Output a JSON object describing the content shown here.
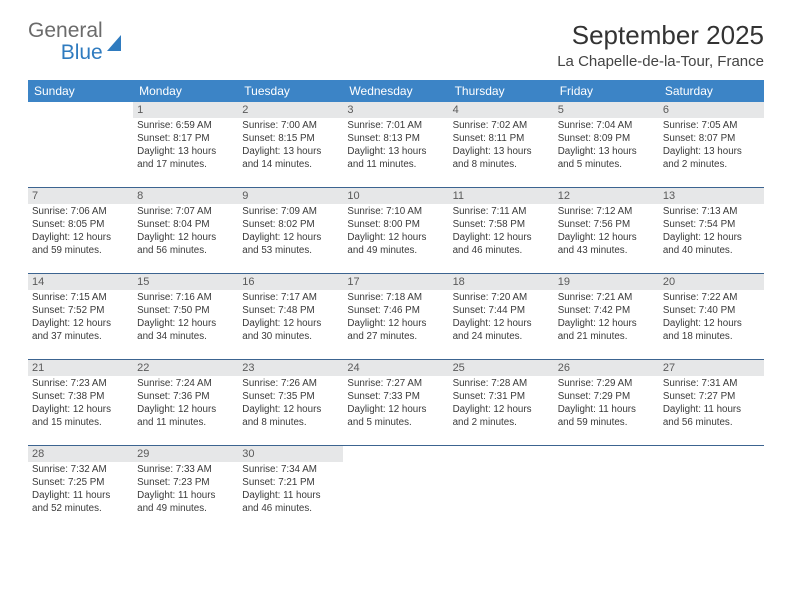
{
  "brand": {
    "name_line1": "General",
    "name_line2": "Blue"
  },
  "title": "September 2025",
  "location": "La Chapelle-de-la-Tour, France",
  "colors": {
    "header_bg": "#3c84c6",
    "header_fg": "#ffffff",
    "daynum_bg": "#e6e7e8",
    "daynum_fg": "#5a5a5a",
    "row_divider": "#3c6490",
    "brand_gray": "#6b6b6b",
    "brand_blue": "#2f7bbf",
    "body_text": "#3a3a3a",
    "page_bg": "#ffffff"
  },
  "typography": {
    "title_fontsize": 26,
    "location_fontsize": 15,
    "dayheader_fontsize": 12,
    "daynum_fontsize": 11,
    "body_fontsize": 9.8,
    "font_family": "Arial"
  },
  "day_headers": [
    "Sunday",
    "Monday",
    "Tuesday",
    "Wednesday",
    "Thursday",
    "Friday",
    "Saturday"
  ],
  "weeks": [
    [
      {
        "n": "",
        "sunrise": "",
        "sunset": "",
        "daylight": ""
      },
      {
        "n": "1",
        "sunrise": "Sunrise: 6:59 AM",
        "sunset": "Sunset: 8:17 PM",
        "daylight": "Daylight: 13 hours and 17 minutes."
      },
      {
        "n": "2",
        "sunrise": "Sunrise: 7:00 AM",
        "sunset": "Sunset: 8:15 PM",
        "daylight": "Daylight: 13 hours and 14 minutes."
      },
      {
        "n": "3",
        "sunrise": "Sunrise: 7:01 AM",
        "sunset": "Sunset: 8:13 PM",
        "daylight": "Daylight: 13 hours and 11 minutes."
      },
      {
        "n": "4",
        "sunrise": "Sunrise: 7:02 AM",
        "sunset": "Sunset: 8:11 PM",
        "daylight": "Daylight: 13 hours and 8 minutes."
      },
      {
        "n": "5",
        "sunrise": "Sunrise: 7:04 AM",
        "sunset": "Sunset: 8:09 PM",
        "daylight": "Daylight: 13 hours and 5 minutes."
      },
      {
        "n": "6",
        "sunrise": "Sunrise: 7:05 AM",
        "sunset": "Sunset: 8:07 PM",
        "daylight": "Daylight: 13 hours and 2 minutes."
      }
    ],
    [
      {
        "n": "7",
        "sunrise": "Sunrise: 7:06 AM",
        "sunset": "Sunset: 8:05 PM",
        "daylight": "Daylight: 12 hours and 59 minutes."
      },
      {
        "n": "8",
        "sunrise": "Sunrise: 7:07 AM",
        "sunset": "Sunset: 8:04 PM",
        "daylight": "Daylight: 12 hours and 56 minutes."
      },
      {
        "n": "9",
        "sunrise": "Sunrise: 7:09 AM",
        "sunset": "Sunset: 8:02 PM",
        "daylight": "Daylight: 12 hours and 53 minutes."
      },
      {
        "n": "10",
        "sunrise": "Sunrise: 7:10 AM",
        "sunset": "Sunset: 8:00 PM",
        "daylight": "Daylight: 12 hours and 49 minutes."
      },
      {
        "n": "11",
        "sunrise": "Sunrise: 7:11 AM",
        "sunset": "Sunset: 7:58 PM",
        "daylight": "Daylight: 12 hours and 46 minutes."
      },
      {
        "n": "12",
        "sunrise": "Sunrise: 7:12 AM",
        "sunset": "Sunset: 7:56 PM",
        "daylight": "Daylight: 12 hours and 43 minutes."
      },
      {
        "n": "13",
        "sunrise": "Sunrise: 7:13 AM",
        "sunset": "Sunset: 7:54 PM",
        "daylight": "Daylight: 12 hours and 40 minutes."
      }
    ],
    [
      {
        "n": "14",
        "sunrise": "Sunrise: 7:15 AM",
        "sunset": "Sunset: 7:52 PM",
        "daylight": "Daylight: 12 hours and 37 minutes."
      },
      {
        "n": "15",
        "sunrise": "Sunrise: 7:16 AM",
        "sunset": "Sunset: 7:50 PM",
        "daylight": "Daylight: 12 hours and 34 minutes."
      },
      {
        "n": "16",
        "sunrise": "Sunrise: 7:17 AM",
        "sunset": "Sunset: 7:48 PM",
        "daylight": "Daylight: 12 hours and 30 minutes."
      },
      {
        "n": "17",
        "sunrise": "Sunrise: 7:18 AM",
        "sunset": "Sunset: 7:46 PM",
        "daylight": "Daylight: 12 hours and 27 minutes."
      },
      {
        "n": "18",
        "sunrise": "Sunrise: 7:20 AM",
        "sunset": "Sunset: 7:44 PM",
        "daylight": "Daylight: 12 hours and 24 minutes."
      },
      {
        "n": "19",
        "sunrise": "Sunrise: 7:21 AM",
        "sunset": "Sunset: 7:42 PM",
        "daylight": "Daylight: 12 hours and 21 minutes."
      },
      {
        "n": "20",
        "sunrise": "Sunrise: 7:22 AM",
        "sunset": "Sunset: 7:40 PM",
        "daylight": "Daylight: 12 hours and 18 minutes."
      }
    ],
    [
      {
        "n": "21",
        "sunrise": "Sunrise: 7:23 AM",
        "sunset": "Sunset: 7:38 PM",
        "daylight": "Daylight: 12 hours and 15 minutes."
      },
      {
        "n": "22",
        "sunrise": "Sunrise: 7:24 AM",
        "sunset": "Sunset: 7:36 PM",
        "daylight": "Daylight: 12 hours and 11 minutes."
      },
      {
        "n": "23",
        "sunrise": "Sunrise: 7:26 AM",
        "sunset": "Sunset: 7:35 PM",
        "daylight": "Daylight: 12 hours and 8 minutes."
      },
      {
        "n": "24",
        "sunrise": "Sunrise: 7:27 AM",
        "sunset": "Sunset: 7:33 PM",
        "daylight": "Daylight: 12 hours and 5 minutes."
      },
      {
        "n": "25",
        "sunrise": "Sunrise: 7:28 AM",
        "sunset": "Sunset: 7:31 PM",
        "daylight": "Daylight: 12 hours and 2 minutes."
      },
      {
        "n": "26",
        "sunrise": "Sunrise: 7:29 AM",
        "sunset": "Sunset: 7:29 PM",
        "daylight": "Daylight: 11 hours and 59 minutes."
      },
      {
        "n": "27",
        "sunrise": "Sunrise: 7:31 AM",
        "sunset": "Sunset: 7:27 PM",
        "daylight": "Daylight: 11 hours and 56 minutes."
      }
    ],
    [
      {
        "n": "28",
        "sunrise": "Sunrise: 7:32 AM",
        "sunset": "Sunset: 7:25 PM",
        "daylight": "Daylight: 11 hours and 52 minutes."
      },
      {
        "n": "29",
        "sunrise": "Sunrise: 7:33 AM",
        "sunset": "Sunset: 7:23 PM",
        "daylight": "Daylight: 11 hours and 49 minutes."
      },
      {
        "n": "30",
        "sunrise": "Sunrise: 7:34 AM",
        "sunset": "Sunset: 7:21 PM",
        "daylight": "Daylight: 11 hours and 46 minutes."
      },
      {
        "n": "",
        "sunrise": "",
        "sunset": "",
        "daylight": ""
      },
      {
        "n": "",
        "sunrise": "",
        "sunset": "",
        "daylight": ""
      },
      {
        "n": "",
        "sunrise": "",
        "sunset": "",
        "daylight": ""
      },
      {
        "n": "",
        "sunrise": "",
        "sunset": "",
        "daylight": ""
      }
    ]
  ]
}
